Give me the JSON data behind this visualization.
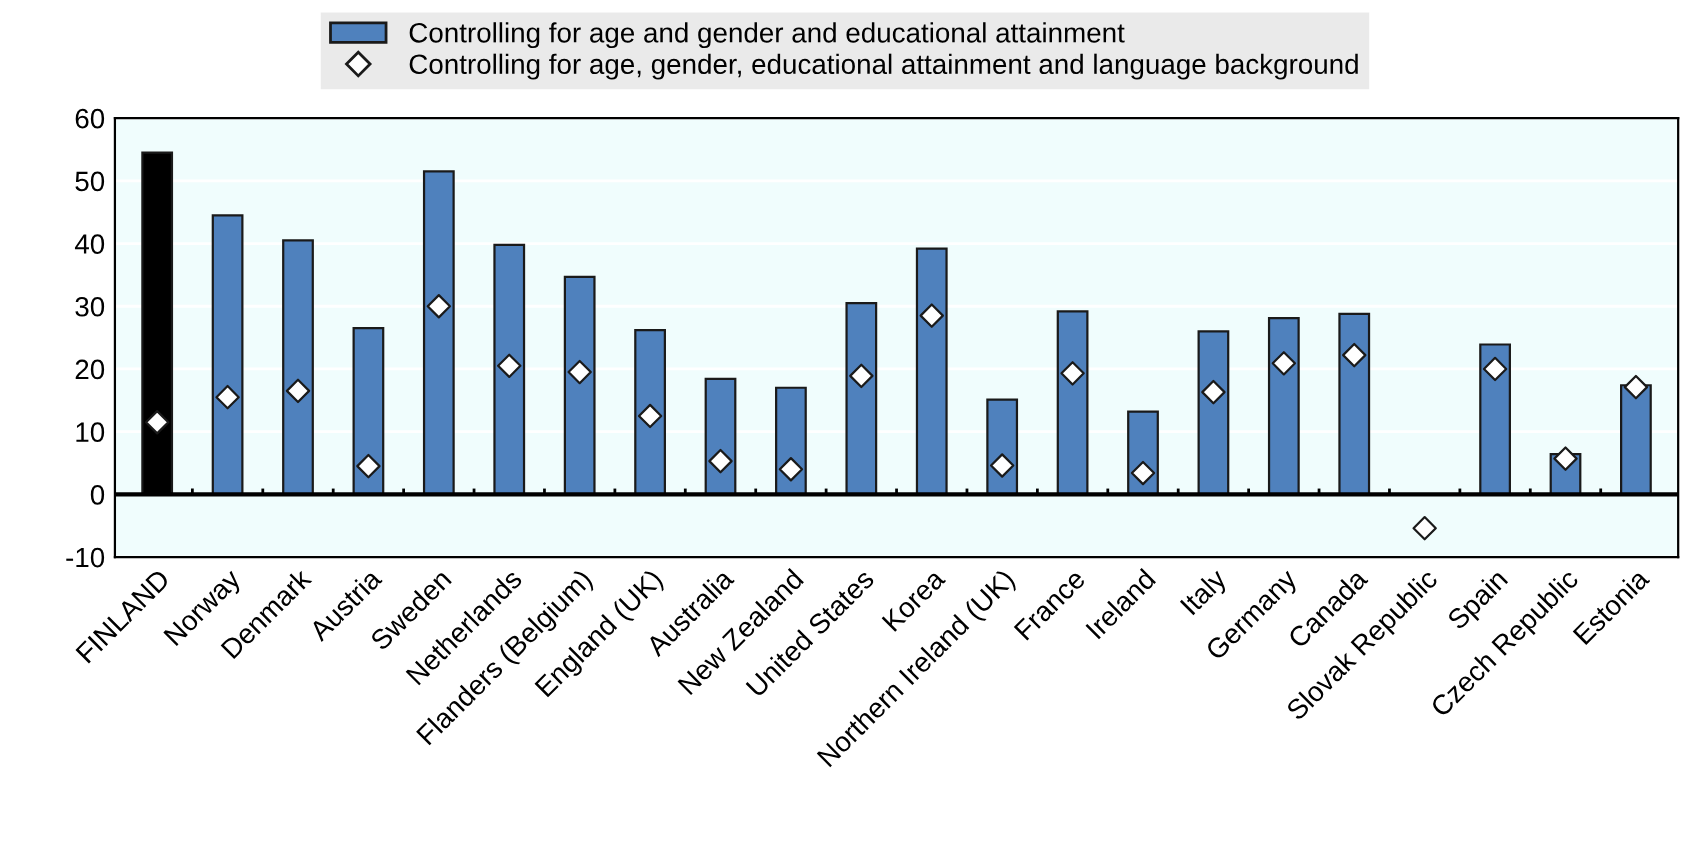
{
  "chart_data": {
    "type": "bar",
    "categories": [
      "FINLAND",
      "Norway",
      "Denmark",
      "Austria",
      "Sweden",
      "Netherlands",
      "Flanders (Belgium)",
      "England (UK)",
      "Australia",
      "New Zealand",
      "United States",
      "Korea",
      "Northern Ireland (UK)",
      "France",
      "Ireland",
      "Italy",
      "Germany",
      "Canada",
      "Slovak Republic",
      "Spain",
      "Czech Republic",
      "Estonia"
    ],
    "series": [
      {
        "name": "Controlling for age and gender and educational attainment",
        "color": "#4f81bd",
        "colors": [
          "#000000",
          "#4f81bd",
          "#4f81bd",
          "#4f81bd",
          "#4f81bd",
          "#4f81bd",
          "#4f81bd",
          "#4f81bd",
          "#4f81bd",
          "#4f81bd",
          "#4f81bd",
          "#4f81bd",
          "#4f81bd",
          "#4f81bd",
          "#4f81bd",
          "#4f81bd",
          "#4f81bd",
          "#4f81bd",
          "#4f81bd",
          "#4f81bd",
          "#4f81bd",
          "#4f81bd"
        ],
        "values": [
          54.5,
          44.5,
          40.5,
          26.5,
          51.5,
          39.8,
          34.7,
          26.2,
          18.4,
          17,
          30.5,
          39.2,
          15.1,
          29.2,
          13.2,
          26,
          28.1,
          28.8,
          null,
          23.9,
          6.4,
          17.4
        ]
      },
      {
        "name": "Controlling for age, gender, educational attainment and language background",
        "type": "scatter",
        "marker": "diamond",
        "color": "#ffffff",
        "values": [
          11.5,
          15.5,
          16.5,
          4.5,
          30,
          20.5,
          19.5,
          12.5,
          5.3,
          4,
          18.9,
          28.5,
          4.6,
          19.3,
          3.4,
          16.3,
          20.9,
          22.2,
          -5.4,
          20,
          5.7,
          17.1
        ]
      }
    ],
    "ylim": [
      -10,
      60
    ],
    "yticks": [
      -10,
      0,
      10,
      20,
      30,
      40,
      50,
      60
    ],
    "grid": "y",
    "legend": "top"
  }
}
